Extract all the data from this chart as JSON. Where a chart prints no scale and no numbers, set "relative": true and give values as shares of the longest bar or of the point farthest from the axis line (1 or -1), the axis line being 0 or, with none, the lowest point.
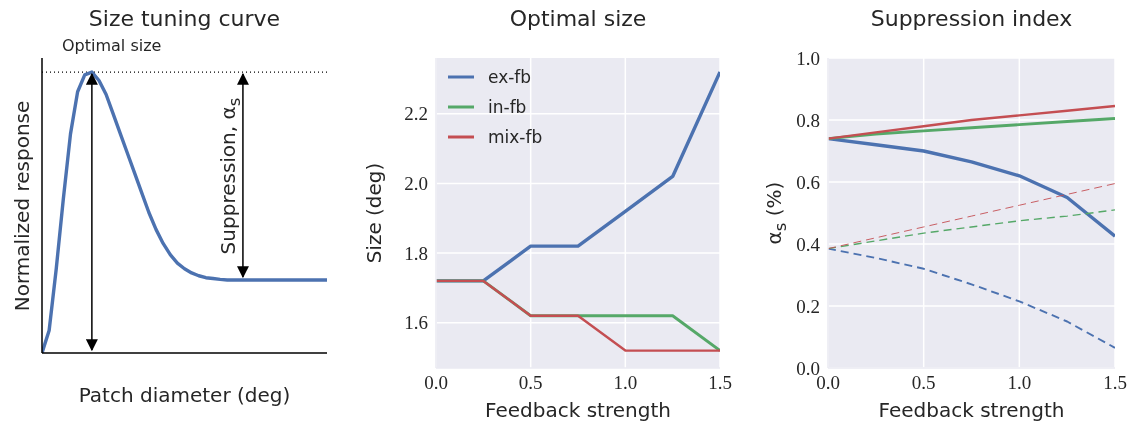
{
  "chart_data": [
    {
      "type": "line",
      "title": "Size tuning curve",
      "xlabel": "Patch diameter (deg)",
      "ylabel": "Normalized response",
      "relative": true,
      "grid": false,
      "legend": false,
      "marker": "none",
      "categories": [
        null,
        null,
        null,
        null,
        null,
        null,
        null,
        null,
        null,
        null,
        null,
        null,
        null,
        null,
        null,
        null,
        null,
        null,
        null,
        null,
        null,
        null,
        null,
        null,
        null,
        null,
        null,
        null,
        null,
        null,
        null,
        null,
        null,
        null,
        null,
        null,
        null,
        null,
        null,
        null,
        null
      ],
      "series": [
        {
          "color": "#4c72b0",
          "values": [
            0,
            0.08,
            0.3,
            0.55,
            0.78,
            0.93,
            0.99,
            1,
            0.97,
            0.92,
            0.85,
            0.78,
            0.71,
            0.64,
            0.57,
            0.5,
            0.44,
            0.39,
            0.35,
            0.32,
            0.3,
            0.285,
            0.275,
            0.268,
            0.265,
            0.262,
            0.26,
            0.26,
            0.26,
            0.26,
            0.26,
            0.26,
            0.26,
            0.26,
            0.26,
            0.26,
            0.26,
            0.26,
            0.26,
            0.26,
            0.26
          ]
        }
      ],
      "ref_lines": [
        {
          "axis": "y",
          "value": 1,
          "line_style": "dotted",
          "color": "#000000"
        }
      ],
      "annotations": [
        "Optimal size",
        "Suppression, α$_{s}$"
      ]
    },
    {
      "type": "line",
      "title": "Optimal size",
      "xlabel": "Feedback strength",
      "ylabel": "Size (deg)",
      "grid": true,
      "legend": "top left",
      "marker": "none",
      "x": [
        0,
        0.25,
        0.5,
        0.75,
        1,
        1.25,
        1.5
      ],
      "xlim": [
        0,
        1.5
      ],
      "xticks": [
        {
          "value": 0,
          "label": "0.0"
        },
        {
          "value": 0.5,
          "label": "0.5"
        },
        {
          "value": 1,
          "label": "1.0"
        },
        {
          "value": 1.5,
          "label": "1.5"
        }
      ],
      "ylim": [
        1.47,
        2.36
      ],
      "yticks": [
        1.6,
        1.8,
        {
          "value": 2,
          "label": "2.0"
        },
        2.2
      ],
      "series": [
        {
          "name": "ex-fb",
          "color": "#4c72b0",
          "values": [
            1.72,
            1.72,
            1.82,
            1.82,
            1.92,
            2.02,
            2.32
          ]
        },
        {
          "name": "in-fb",
          "color": "#55a868",
          "values": [
            1.72,
            1.72,
            1.62,
            1.62,
            1.62,
            1.62,
            1.52
          ]
        },
        {
          "name": "mix-fb",
          "color": "#c44e52",
          "values": [
            1.72,
            1.72,
            1.62,
            1.62,
            1.52,
            1.52,
            1.52
          ]
        }
      ]
    },
    {
      "type": "line",
      "title": "Suppression index",
      "xlabel": "Feedback strength",
      "ylabel": "α$_{s}$ (%)",
      "grid": true,
      "legend": false,
      "marker": "none",
      "x": [
        0,
        0.25,
        0.5,
        0.75,
        1,
        1.25,
        1.5
      ],
      "xlim": [
        0,
        1.5
      ],
      "xticks": [
        {
          "value": 0,
          "label": "0.0"
        },
        {
          "value": 0.5,
          "label": "0.5"
        },
        {
          "value": 1,
          "label": "1.0"
        },
        {
          "value": 1.5,
          "label": "1.5"
        }
      ],
      "ylim": [
        0,
        1
      ],
      "yticks": [
        {
          "value": 0,
          "label": "0.0"
        },
        0.2,
        0.4,
        0.6,
        0.8,
        {
          "value": 1,
          "label": "1.0"
        }
      ],
      "series": [
        {
          "color": "#4c72b0",
          "values": [
            0.74,
            0.72,
            0.7,
            0.665,
            0.62,
            0.55,
            0.425
          ]
        },
        {
          "color": "#55a868",
          "values": [
            0.74,
            0.755,
            0.765,
            0.775,
            0.785,
            0.795,
            0.805
          ]
        },
        {
          "color": "#c44e52",
          "values": [
            0.74,
            0.76,
            0.78,
            0.8,
            0.815,
            0.83,
            0.845
          ]
        },
        {
          "color": "#4c72b0",
          "line_style": "dashed",
          "values": [
            0.385,
            0.355,
            0.32,
            0.27,
            0.215,
            0.15,
            0.065
          ]
        },
        {
          "color": "#55a868",
          "line_style": "dashed",
          "values": [
            0.385,
            0.41,
            0.435,
            0.455,
            0.475,
            0.49,
            0.51
          ]
        },
        {
          "color": "#c44e52",
          "line_style": "dashed",
          "values": [
            0.385,
            0.42,
            0.455,
            0.49,
            0.525,
            0.56,
            0.595
          ]
        }
      ]
    }
  ]
}
